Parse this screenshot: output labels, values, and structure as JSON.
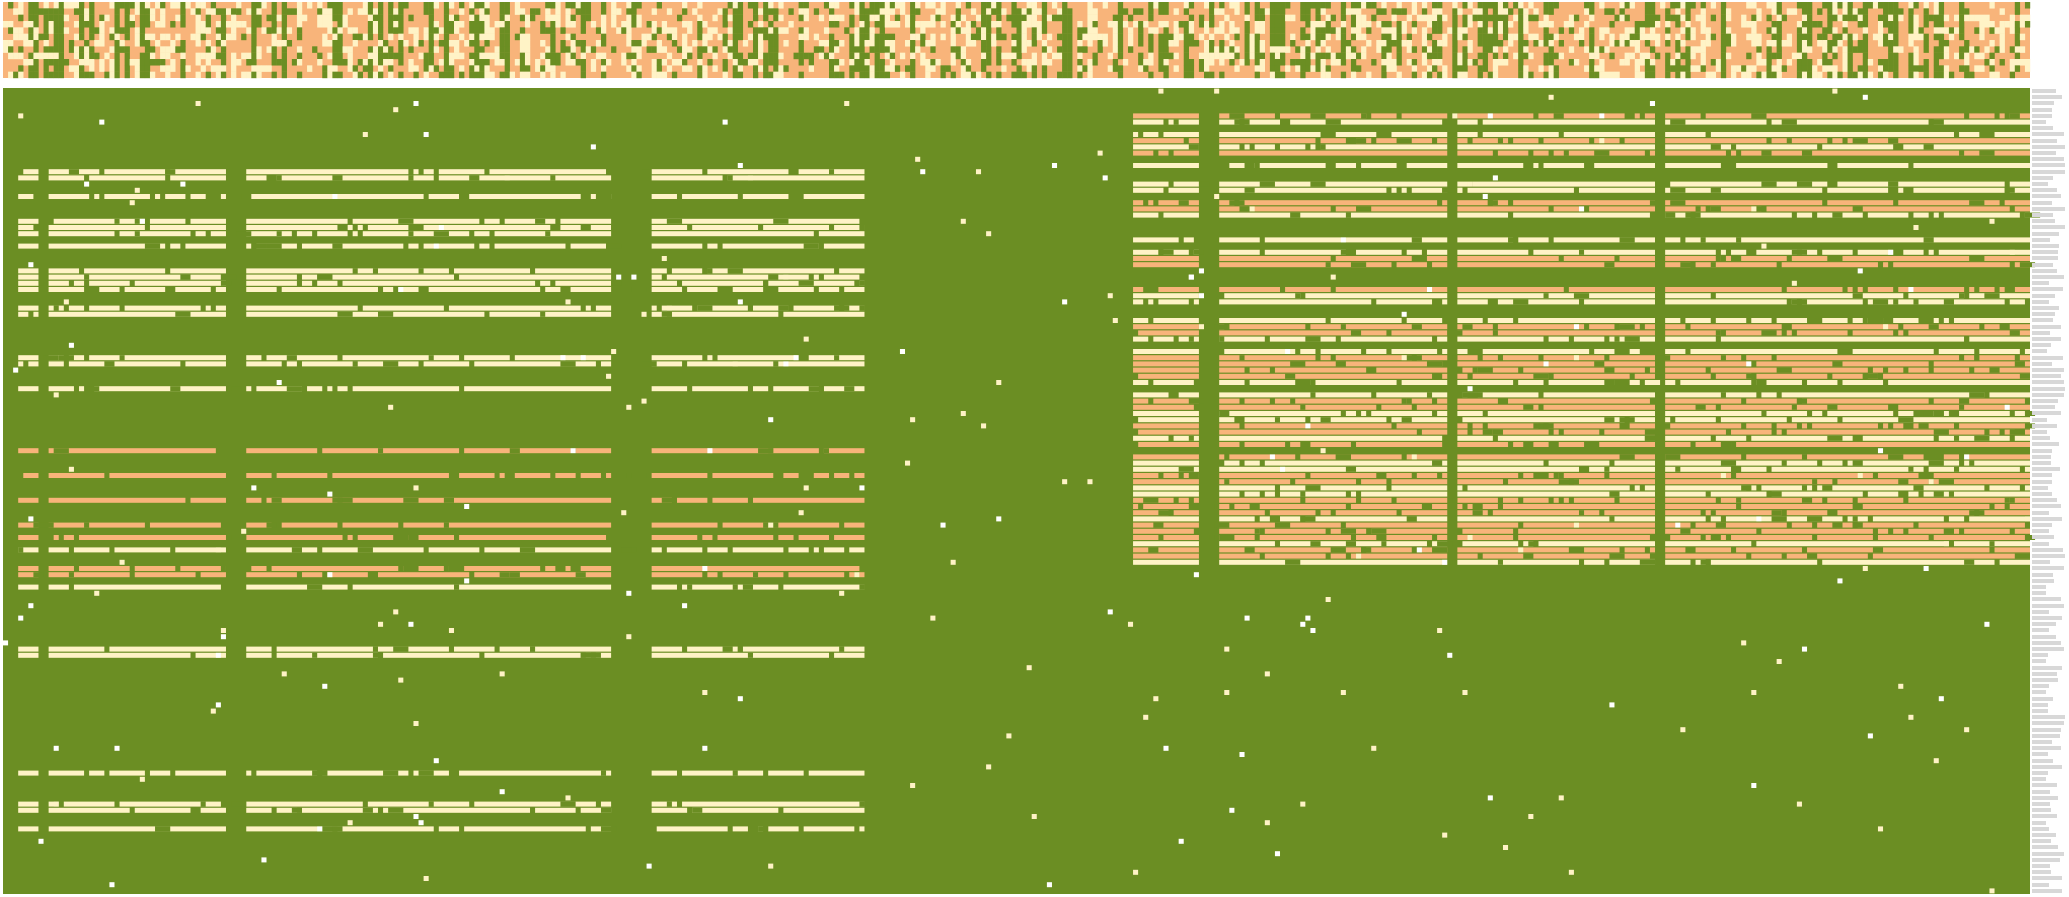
{
  "chart_data": {
    "type": "heatmap",
    "title": "",
    "xlabel": "",
    "ylabel": "",
    "colors": {
      "background": "#6b8e23",
      "light": "#fff3c6",
      "orange": "#f8b47a",
      "white": "#ffffff"
    },
    "legend": [],
    "grid": false,
    "n_rows": 130,
    "n_cols": 400,
    "header": {
      "n_rows": 12,
      "dominant": [
        "orange",
        "light",
        "background"
      ]
    },
    "column_groups": [
      {
        "name": "",
        "col_start": 0,
        "col_end": 172
      },
      {
        "name": "",
        "col_start": 172,
        "col_end": 220
      },
      {
        "name": "",
        "col_start": 220,
        "col_end": 400
      }
    ],
    "left_block": {
      "col_start": 3,
      "col_end": 170,
      "gap_cols": [
        [
          7,
          9
        ],
        [
          44,
          48
        ],
        [
          120,
          128
        ]
      ],
      "light_rows": [
        13,
        14,
        17,
        21,
        22,
        23,
        25,
        29,
        30,
        31,
        32,
        35,
        36,
        43,
        44,
        48,
        74,
        80,
        90,
        91,
        110,
        115,
        116,
        119
      ],
      "orange_rows": [
        58,
        62,
        66,
        70,
        72,
        77,
        78
      ]
    },
    "right_block": {
      "col_start": 223,
      "col_end": 400,
      "gap_cols": [
        [
          236,
          240
        ],
        [
          285,
          287
        ],
        [
          326,
          328
        ]
      ],
      "light_rows": [
        5,
        7,
        9,
        12,
        15,
        16,
        20,
        24,
        26,
        33,
        34,
        37,
        40,
        42,
        47,
        49,
        52,
        53,
        56,
        60,
        61,
        64,
        65,
        69,
        73,
        76
      ],
      "orange_rows": [
        4,
        8,
        10,
        18,
        19,
        27,
        28,
        32,
        38,
        39,
        43,
        44,
        45,
        46,
        50,
        51,
        54,
        55,
        57,
        59,
        62,
        63,
        66,
        67,
        68,
        70,
        71,
        72,
        74,
        75
      ]
    },
    "noise_seed": 7
  }
}
